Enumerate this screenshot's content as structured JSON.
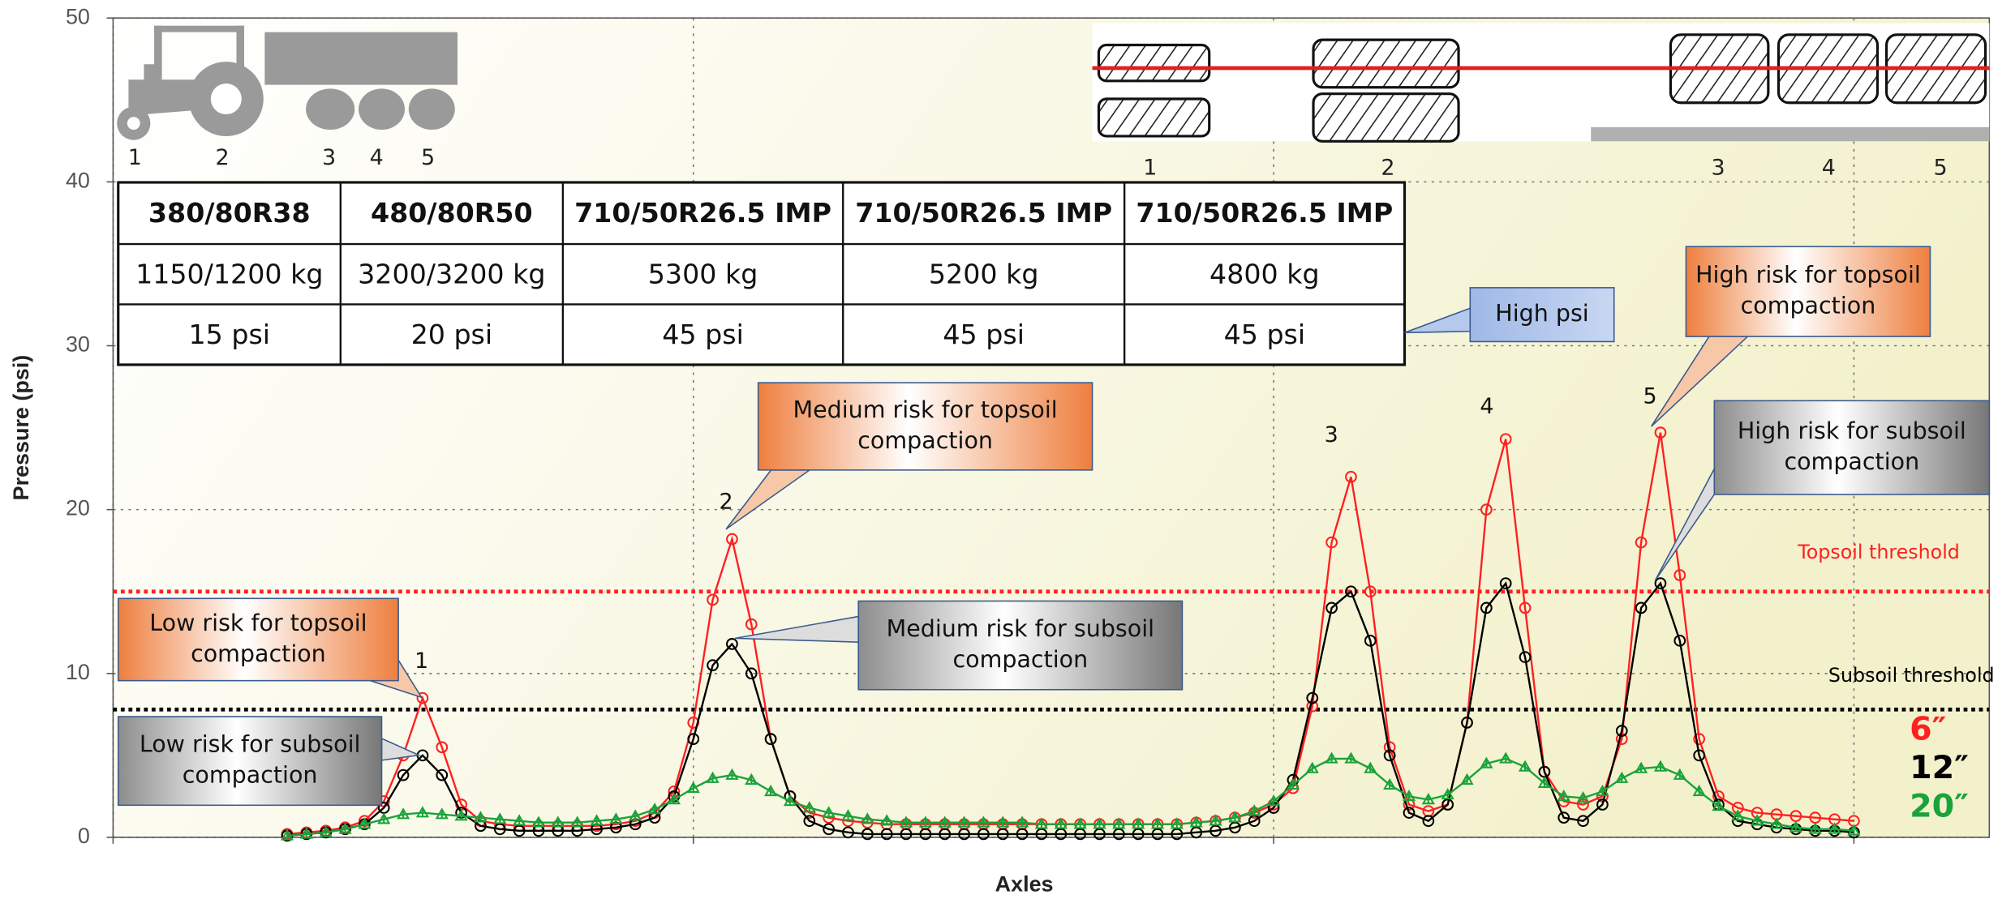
{
  "chart_data": {
    "type": "line",
    "x_label": "Axles",
    "y_label": "Pressure (psi)",
    "xlim": [
      0,
      97
    ],
    "xticks": [
      0,
      30,
      60,
      90
    ],
    "ylim": [
      0,
      50
    ],
    "yticks": [
      0,
      10,
      20,
      30,
      40,
      50
    ],
    "grid": true,
    "x": [
      9,
      10,
      11,
      12,
      13,
      14,
      15,
      16,
      17,
      18,
      19,
      20,
      21,
      22,
      23,
      24,
      25,
      26,
      27,
      28,
      29,
      30,
      31,
      32,
      33,
      34,
      35,
      36,
      37,
      38,
      39,
      40,
      41,
      42,
      43,
      44,
      45,
      46,
      47,
      48,
      49,
      50,
      51,
      52,
      53,
      54,
      55,
      56,
      57,
      58,
      59,
      60,
      61,
      62,
      63,
      64,
      65,
      66,
      67,
      68,
      69,
      70,
      71,
      72,
      73,
      74,
      75,
      76,
      77,
      78,
      79,
      80,
      81,
      82,
      83,
      84,
      85,
      86,
      87,
      88,
      89,
      90
    ],
    "series": [
      {
        "name": "6″",
        "color": "#ff2020",
        "values": [
          0.2,
          0.3,
          0.4,
          0.6,
          1.0,
          2.2,
          5.0,
          8.5,
          5.5,
          2.0,
          1.0,
          0.8,
          0.7,
          0.7,
          0.7,
          0.7,
          0.7,
          0.8,
          1.0,
          1.5,
          2.8,
          7.0,
          14.5,
          18.2,
          13.0,
          6.0,
          2.5,
          1.5,
          1.2,
          1.0,
          0.9,
          0.8,
          0.8,
          0.8,
          0.8,
          0.8,
          0.8,
          0.8,
          0.8,
          0.8,
          0.8,
          0.8,
          0.8,
          0.8,
          0.8,
          0.8,
          0.8,
          0.9,
          1.0,
          1.2,
          1.5,
          2.0,
          3.0,
          8.0,
          18.0,
          22.0,
          15.0,
          5.5,
          2.0,
          1.6,
          2.0,
          7.0,
          20.0,
          24.3,
          14.0,
          4.0,
          2.2,
          2.0,
          2.5,
          6.0,
          18.0,
          24.7,
          16.0,
          6.0,
          2.5,
          1.8,
          1.5,
          1.4,
          1.3,
          1.2,
          1.1,
          1.0
        ]
      },
      {
        "name": "12″",
        "color": "#000000",
        "values": [
          0.1,
          0.2,
          0.3,
          0.5,
          0.8,
          1.8,
          3.8,
          5.0,
          3.8,
          1.5,
          0.7,
          0.5,
          0.4,
          0.4,
          0.4,
          0.4,
          0.5,
          0.6,
          0.8,
          1.2,
          2.5,
          6.0,
          10.5,
          11.8,
          10.0,
          6.0,
          2.5,
          1.0,
          0.5,
          0.3,
          0.2,
          0.2,
          0.2,
          0.2,
          0.2,
          0.2,
          0.2,
          0.2,
          0.2,
          0.2,
          0.2,
          0.2,
          0.2,
          0.2,
          0.2,
          0.2,
          0.2,
          0.3,
          0.4,
          0.6,
          1.0,
          1.8,
          3.5,
          8.5,
          14.0,
          15.0,
          12.0,
          5.0,
          1.5,
          1.0,
          2.0,
          7.0,
          14.0,
          15.5,
          11.0,
          4.0,
          1.2,
          1.0,
          2.0,
          6.5,
          14.0,
          15.5,
          12.0,
          5.0,
          2.0,
          1.0,
          0.8,
          0.6,
          0.5,
          0.4,
          0.4,
          0.3
        ]
      },
      {
        "name": "20″",
        "color": "#1aa33a",
        "values": [
          0.1,
          0.2,
          0.3,
          0.5,
          0.8,
          1.1,
          1.4,
          1.5,
          1.4,
          1.3,
          1.2,
          1.1,
          1.0,
          0.9,
          0.9,
          0.9,
          1.0,
          1.1,
          1.3,
          1.7,
          2.3,
          3.0,
          3.6,
          3.8,
          3.5,
          2.8,
          2.2,
          1.8,
          1.5,
          1.3,
          1.1,
          1.0,
          0.9,
          0.9,
          0.9,
          0.9,
          0.9,
          0.9,
          0.9,
          0.8,
          0.8,
          0.8,
          0.8,
          0.8,
          0.8,
          0.8,
          0.8,
          0.9,
          1.0,
          1.2,
          1.6,
          2.2,
          3.2,
          4.2,
          4.8,
          4.8,
          4.2,
          3.2,
          2.5,
          2.3,
          2.6,
          3.5,
          4.5,
          4.8,
          4.3,
          3.3,
          2.5,
          2.4,
          2.8,
          3.6,
          4.2,
          4.3,
          3.8,
          2.8,
          1.9,
          1.3,
          1.0,
          0.8,
          0.6,
          0.5,
          0.5,
          0.4
        ]
      }
    ],
    "thresholds": [
      {
        "label": "Topsoil threshold",
        "value": 15,
        "color": "#ff2020"
      },
      {
        "label": "Subsoil threshold",
        "value": 7.8,
        "color": "#000000"
      }
    ],
    "peak_labels": [
      "1",
      "2",
      "3",
      "4",
      "5"
    ]
  },
  "tractor_diagram": {
    "axle_labels": [
      "1",
      "2",
      "3",
      "4",
      "5"
    ]
  },
  "tire_diagram": {
    "axle_labels": [
      "1",
      "2",
      "3",
      "4",
      "5"
    ]
  },
  "tire_table": {
    "rows": [
      [
        "380/80R38",
        "480/80R50",
        "710/50R26.5 IMP",
        "710/50R26.5 IMP",
        "710/50R26.5 IMP"
      ],
      [
        "1150/1200 kg",
        "3200/3200 kg",
        "5300 kg",
        "5200 kg",
        "4800 kg"
      ],
      [
        "15 psi",
        "20 psi",
        "45 psi",
        "45 psi",
        "45 psi"
      ]
    ]
  },
  "callouts": [
    {
      "lines": [
        "Low risk for topsoil",
        "compaction"
      ]
    },
    {
      "lines": [
        "Low risk for subsoil",
        "compaction"
      ]
    },
    {
      "lines": [
        "Medium risk for topsoil",
        "compaction"
      ]
    },
    {
      "lines": [
        "Medium risk for subsoil",
        "compaction"
      ]
    },
    {
      "lines": [
        "High risk for topsoil",
        "compaction"
      ]
    },
    {
      "lines": [
        "High risk for subsoil",
        "compaction"
      ]
    },
    {
      "lines": [
        "High psi"
      ]
    }
  ]
}
